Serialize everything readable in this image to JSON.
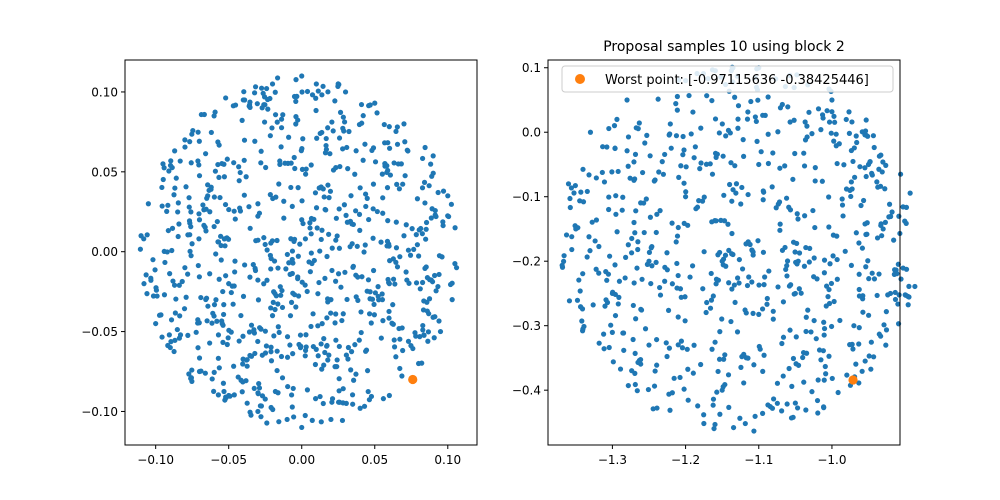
{
  "colors": {
    "samples": "#1f77b4",
    "worst": "#ff7f0e",
    "axes": "#000000"
  },
  "chart_data": [
    {
      "type": "scatter",
      "title": "",
      "xlabel": "",
      "ylabel": "",
      "xlim": [
        -0.121,
        0.12
      ],
      "ylim": [
        -0.121,
        0.12
      ],
      "xticks": [
        -0.1,
        -0.05,
        0.0,
        0.05,
        0.1
      ],
      "xtick_labels": [
        "−0.10",
        "−0.05",
        "0.00",
        "0.05",
        "0.10"
      ],
      "yticks": [
        -0.1,
        -0.05,
        0.0,
        0.05,
        0.1
      ],
      "ytick_labels": [
        "−0.10",
        "−0.05",
        "0.00",
        "0.05",
        "0.10"
      ],
      "grid": false,
      "series": [
        {
          "role": "samples",
          "shape": "disk",
          "center": [
            -0.002,
            0.0
          ],
          "rx": 0.109,
          "ry": 0.11,
          "count": 800,
          "points": [
            [
              -0.11,
              0.01
            ],
            [
              -0.108,
              -0.02
            ],
            [
              -0.105,
              0.03
            ],
            [
              -0.1,
              -0.045
            ],
            [
              -0.095,
              0.055
            ],
            [
              -0.09,
              -0.06
            ],
            [
              -0.08,
              0.07
            ],
            [
              -0.07,
              -0.075
            ],
            [
              -0.06,
              0.085
            ],
            [
              -0.05,
              -0.09
            ],
            [
              -0.04,
              0.095
            ],
            [
              -0.03,
              -0.1
            ],
            [
              -0.02,
              0.105
            ],
            [
              -0.01,
              -0.105
            ],
            [
              0.0,
              0.11
            ],
            [
              0.0,
              -0.11
            ],
            [
              0.01,
              0.105
            ],
            [
              0.02,
              -0.105
            ],
            [
              0.03,
              0.1
            ],
            [
              0.04,
              -0.098
            ],
            [
              0.05,
              0.093
            ],
            [
              0.06,
              -0.09
            ],
            [
              0.07,
              0.08
            ],
            [
              0.08,
              -0.07
            ],
            [
              0.09,
              0.06
            ],
            [
              0.095,
              -0.05
            ],
            [
              0.1,
              0.035
            ],
            [
              0.103,
              -0.03
            ],
            [
              0.105,
              0.015
            ],
            [
              0.106,
              -0.01
            ],
            [
              -0.07,
              0.02
            ],
            [
              -0.05,
              -0.02
            ],
            [
              -0.03,
              0.03
            ],
            [
              -0.02,
              -0.04
            ],
            [
              0.0,
              0.02
            ],
            [
              0.02,
              -0.03
            ],
            [
              0.04,
              0.04
            ],
            [
              0.06,
              -0.02
            ],
            [
              0.07,
              0.01
            ],
            [
              -0.08,
              -0.01
            ]
          ]
        },
        {
          "role": "worst",
          "name": "",
          "points": [
            [
              0.076,
              -0.08
            ]
          ]
        }
      ]
    },
    {
      "type": "scatter",
      "title": "Proposal samples 10 using block 2",
      "xlabel": "",
      "ylabel": "",
      "xlim": [
        -1.388,
        -0.907
      ],
      "ylim": [
        -0.485,
        0.112
      ],
      "xticks": [
        -1.3,
        -1.2,
        -1.1,
        -1.0
      ],
      "xtick_labels": [
        "−1.3",
        "−1.2",
        "−1.1",
        "−1.0"
      ],
      "yticks": [
        -0.4,
        -0.3,
        -0.2,
        -0.1,
        0.0,
        0.1
      ],
      "ytick_labels": [
        "−0.4",
        "−0.3",
        "−0.2",
        "−0.1",
        "0.0",
        "0.1"
      ],
      "grid": false,
      "legend": {
        "placement": "top-left",
        "label": "Worst point: [-0.97115636 -0.38425446]"
      },
      "series": [
        {
          "role": "samples",
          "shape": "disk",
          "center": [
            -1.125,
            -0.18
          ],
          "rx": 0.245,
          "ry": 0.285,
          "count": 700,
          "points": [
            [
              -1.36,
              -0.08
            ],
            [
              -1.35,
              -0.15
            ],
            [
              -1.33,
              0.0
            ],
            [
              -1.3,
              -0.25
            ],
            [
              -1.28,
              0.05
            ],
            [
              -1.25,
              -0.33
            ],
            [
              -1.2,
              0.08
            ],
            [
              -1.15,
              -0.4
            ],
            [
              -1.1,
              0.1
            ],
            [
              -1.05,
              -0.42
            ],
            [
              -1.0,
              0.05
            ],
            [
              -0.97,
              -0.3
            ],
            [
              -0.95,
              -0.05
            ],
            [
              -0.93,
              -0.15
            ],
            [
              -0.92,
              -0.25
            ],
            [
              -1.2,
              -0.1
            ],
            [
              -1.15,
              -0.2
            ],
            [
              -1.1,
              -0.05
            ],
            [
              -1.05,
              -0.25
            ],
            [
              -1.25,
              -0.2
            ]
          ]
        },
        {
          "role": "worst",
          "name": "Worst point: [-0.97115636 -0.38425446]",
          "points": [
            [
              -0.97115636,
              -0.38425446
            ]
          ]
        }
      ]
    }
  ]
}
